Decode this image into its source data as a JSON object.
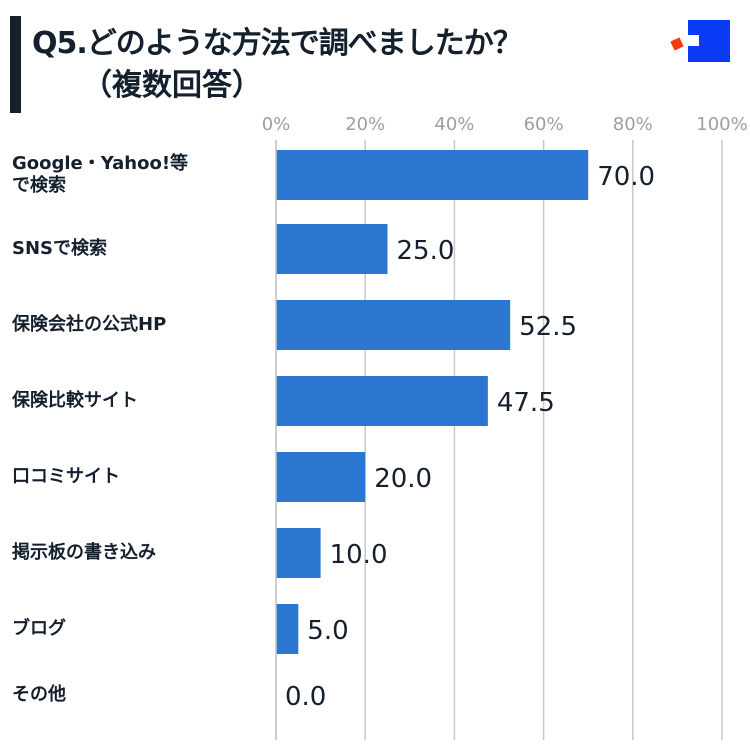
{
  "title_line1": "Q5.どのような方法で調べましたか？",
  "title_line2": "（複数回答）",
  "logo": "brand-logo",
  "colors": {
    "bar": "#2b76d0",
    "text": "#14202e",
    "grid": "#c8c8c8",
    "logo_blue": "#0a3cf5",
    "logo_orange": "#f53c0f"
  },
  "chart_data": {
    "type": "bar",
    "orientation": "horizontal",
    "categories": [
      "Google・Yahoo!等で検索",
      "SNSで検索",
      "保険会社の公式HP",
      "保険比較サイト",
      "口コミサイト",
      "掲示板の書き込み",
      "ブログ",
      "その他"
    ],
    "category_lines": [
      [
        "Google・Yahoo!等",
        "で検索"
      ],
      [
        "SNSで検索"
      ],
      [
        "保険会社の公式HP"
      ],
      [
        "保険比較サイト"
      ],
      [
        "口コミサイト"
      ],
      [
        "掲示板の書き込み"
      ],
      [
        "ブログ"
      ],
      [
        "その他"
      ]
    ],
    "values": [
      70.0,
      25.0,
      52.5,
      47.5,
      20.0,
      10.0,
      5.0,
      0.0
    ],
    "value_labels": [
      "70.0",
      "25.0",
      "52.5",
      "47.5",
      "20.0",
      "10.0",
      "5.0",
      "0.0"
    ],
    "xlim": [
      0,
      100
    ],
    "xticks": [
      0,
      20,
      40,
      60,
      80,
      100
    ],
    "xtick_labels": [
      "0%",
      "20%",
      "40%",
      "60%",
      "80%",
      "100%"
    ],
    "grid": true,
    "title": "Q5.どのような方法で調べましたか？（複数回答）"
  }
}
